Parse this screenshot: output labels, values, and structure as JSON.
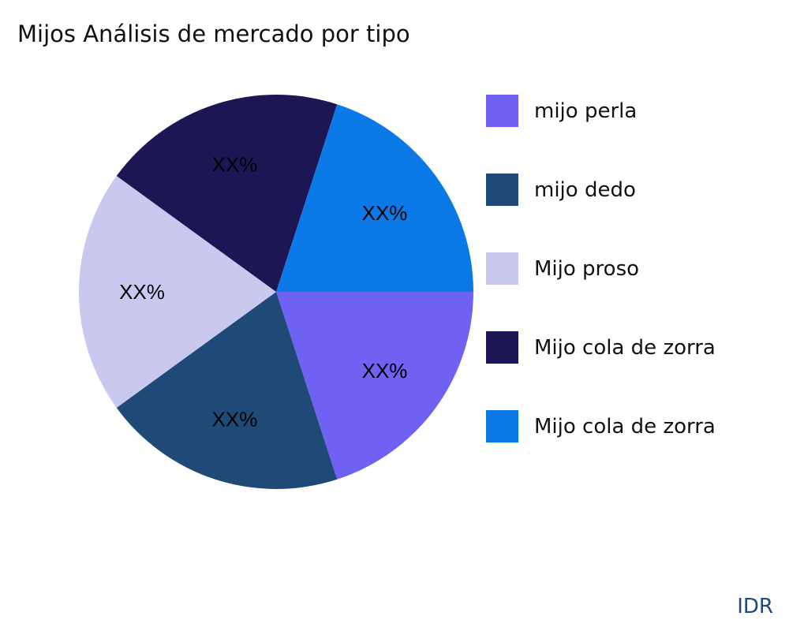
{
  "title": "Mijos Análisis de mercado por tipo",
  "source": "IDR",
  "chart_data": {
    "type": "pie",
    "title": "Mijos Análisis de mercado por tipo",
    "categories": [
      "mijo perla",
      "mijo dedo",
      "Mijo proso",
      "Mijo cola de zorra",
      "Mijo cola de zorra"
    ],
    "values": [
      20,
      20,
      20,
      20,
      20
    ],
    "data_labels": [
      "XX%",
      "XX%",
      "XX%",
      "XX%",
      "XX%"
    ],
    "colors": [
      "#6F61F2",
      "#1F4A78",
      "#C9C9F0",
      "#1C1654",
      "#0B7AE6"
    ],
    "legend_placement": "right",
    "direction": "clockwise",
    "start": "3 o'clock"
  }
}
